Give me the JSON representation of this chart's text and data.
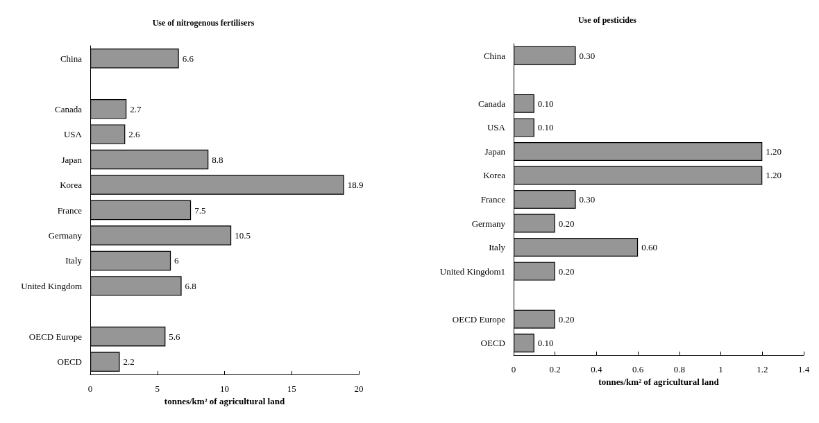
{
  "chart_data": [
    {
      "type": "bar",
      "orientation": "horizontal",
      "title": "Use of nitrogenous fertilisers",
      "xlabel": "tonnes/km² of agricultural land",
      "categories": [
        "China",
        null,
        "Canada",
        "USA",
        "Japan",
        "Korea",
        "France",
        "Germany",
        "Italy",
        "United Kingdom",
        null,
        "OECD Europe",
        "OECD"
      ],
      "values": [
        6.6,
        null,
        2.7,
        2.6,
        8.8,
        18.9,
        7.5,
        10.5,
        6,
        6.8,
        null,
        5.6,
        2.2
      ],
      "color": "#969696",
      "xlim": [
        0,
        20
      ],
      "xticks": [
        0,
        5,
        10,
        15,
        20
      ],
      "grid": false,
      "data_labels": true
    },
    {
      "type": "bar",
      "orientation": "horizontal",
      "title": "Use of pesticides",
      "xlabel": "tonnes/km² of agricultural land",
      "categories": [
        "China",
        null,
        "Canada",
        "USA",
        "Japan",
        "Korea",
        "France",
        "Germany",
        "Italy",
        "United Kingdom1",
        null,
        "OECD Europe",
        "OECD"
      ],
      "values": [
        0.3,
        null,
        0.1,
        0.1,
        1.2,
        1.2,
        0.3,
        0.2,
        0.6,
        0.2,
        null,
        0.2,
        0.1
      ],
      "value_labels": [
        "0.30",
        null,
        "0.10",
        "0.10",
        "1.20",
        "1.20",
        "0.30",
        "0.20",
        "0.60",
        "0.20",
        null,
        "0.20",
        "0.10"
      ],
      "color": "#969696",
      "xlim": [
        0,
        1.4
      ],
      "xticks": [
        0,
        0.2,
        0.4,
        0.6,
        0.8,
        1,
        1.2,
        1.4
      ],
      "grid": false
    }
  ]
}
